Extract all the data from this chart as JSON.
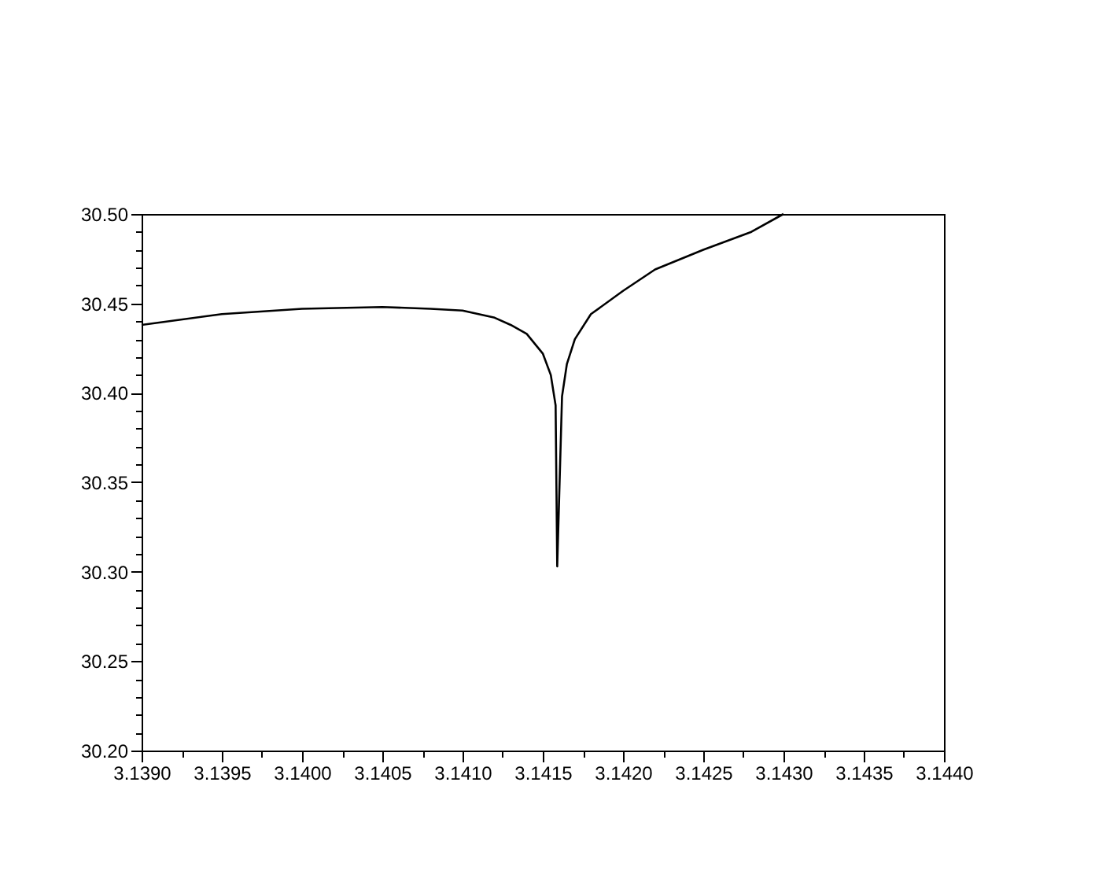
{
  "chart_data": {
    "type": "line",
    "x": [
      3.139,
      3.1395,
      3.14,
      3.1405,
      3.1408,
      3.141,
      3.1412,
      3.1413,
      3.1414,
      3.1415,
      3.14155,
      3.14158,
      3.14159,
      3.14162,
      3.14165,
      3.1417,
      3.1418,
      3.142,
      3.1422,
      3.1425,
      3.1428,
      3.143
    ],
    "series": [
      {
        "color": "#000000",
        "values": [
          30.438,
          30.444,
          30.447,
          30.448,
          30.447,
          30.446,
          30.442,
          30.438,
          30.433,
          30.422,
          30.41,
          30.393,
          30.303,
          30.398,
          30.416,
          30.43,
          30.444,
          30.457,
          30.469,
          30.48,
          30.49,
          30.5
        ]
      }
    ],
    "xlim": [
      3.139,
      3.144
    ],
    "ylim": [
      30.2,
      30.5
    ],
    "xticks": [
      {
        "value": 3.139,
        "label": "3.1390"
      },
      {
        "value": 3.13925,
        "label": null
      },
      {
        "value": 3.1395,
        "label": "3.1395"
      },
      {
        "value": 3.13975,
        "label": null
      },
      {
        "value": 3.14,
        "label": "3.1400"
      },
      {
        "value": 3.14025,
        "label": null
      },
      {
        "value": 3.1405,
        "label": "3.1405"
      },
      {
        "value": 3.14075,
        "label": null
      },
      {
        "value": 3.141,
        "label": "3.1410"
      },
      {
        "value": 3.14125,
        "label": null
      },
      {
        "value": 3.1415,
        "label": "3.1415"
      },
      {
        "value": 3.14175,
        "label": null
      },
      {
        "value": 3.142,
        "label": "3.1420"
      },
      {
        "value": 3.14225,
        "label": null
      },
      {
        "value": 3.1425,
        "label": "3.1425"
      },
      {
        "value": 3.14275,
        "label": null
      },
      {
        "value": 3.143,
        "label": "3.1430"
      },
      {
        "value": 3.14325,
        "label": null
      },
      {
        "value": 3.1435,
        "label": "3.1435"
      },
      {
        "value": 3.14375,
        "label": null
      },
      {
        "value": 3.144,
        "label": "3.1440"
      }
    ],
    "yticks": [
      {
        "value": 30.2,
        "label": "30.20"
      },
      {
        "value": 30.21,
        "label": null
      },
      {
        "value": 30.22,
        "label": null
      },
      {
        "value": 30.23,
        "label": null
      },
      {
        "value": 30.24,
        "label": null
      },
      {
        "value": 30.25,
        "label": "30.25"
      },
      {
        "value": 30.26,
        "label": null
      },
      {
        "value": 30.27,
        "label": null
      },
      {
        "value": 30.28,
        "label": null
      },
      {
        "value": 30.29,
        "label": null
      },
      {
        "value": 30.3,
        "label": "30.30"
      },
      {
        "value": 30.31,
        "label": null
      },
      {
        "value": 30.32,
        "label": null
      },
      {
        "value": 30.33,
        "label": null
      },
      {
        "value": 30.34,
        "label": null
      },
      {
        "value": 30.35,
        "label": "30.35"
      },
      {
        "value": 30.36,
        "label": null
      },
      {
        "value": 30.37,
        "label": null
      },
      {
        "value": 30.38,
        "label": null
      },
      {
        "value": 30.39,
        "label": null
      },
      {
        "value": 30.4,
        "label": "30.40"
      },
      {
        "value": 30.41,
        "label": null
      },
      {
        "value": 30.42,
        "label": null
      },
      {
        "value": 30.43,
        "label": null
      },
      {
        "value": 30.44,
        "label": null
      },
      {
        "value": 30.45,
        "label": "30.45"
      },
      {
        "value": 30.46,
        "label": null
      },
      {
        "value": 30.47,
        "label": null
      },
      {
        "value": 30.48,
        "label": null
      },
      {
        "value": 30.49,
        "label": null
      },
      {
        "value": 30.5,
        "label": "30.50"
      }
    ],
    "grid": false,
    "marker": "none",
    "line_style": "solid"
  }
}
